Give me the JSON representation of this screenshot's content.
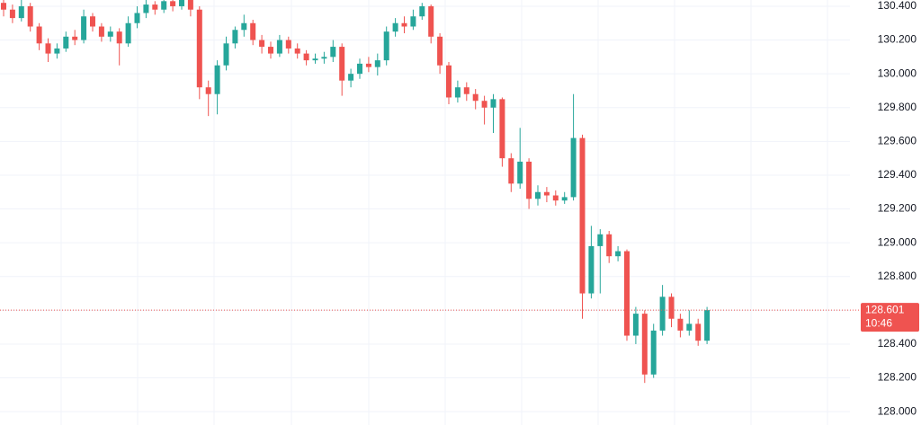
{
  "chart_data": {
    "type": "candlestick",
    "up_color": "#26a69a",
    "down_color": "#ef5350",
    "ylim": [
      127.921,
      130.437
    ],
    "yticks": [
      {
        "value": 128.0,
        "label": "128.000"
      },
      {
        "value": 128.2,
        "label": "128.200"
      },
      {
        "value": 128.4,
        "label": "128.400"
      },
      {
        "value": 128.6,
        "label": "128.600"
      },
      {
        "value": 128.8,
        "label": "128.800"
      },
      {
        "value": 129.0,
        "label": "129.000"
      },
      {
        "value": 129.2,
        "label": "129.200"
      },
      {
        "value": 129.4,
        "label": "129.400"
      },
      {
        "value": 129.6,
        "label": "129.600"
      },
      {
        "value": 129.8,
        "label": "129.800"
      },
      {
        "value": 130.0,
        "label": "130.000"
      },
      {
        "value": 130.2,
        "label": "130.200"
      },
      {
        "value": 130.4,
        "label": "130.400"
      }
    ],
    "grid": true,
    "current_price": {
      "value": 128.601,
      "label": "128.601"
    },
    "countdown": "10:46",
    "open": [
      130.42,
      130.38,
      130.33,
      130.4,
      130.28,
      130.18,
      130.12,
      130.15,
      130.22,
      130.2,
      130.34,
      130.28,
      130.22,
      130.25,
      130.18,
      130.3,
      130.36,
      130.41,
      130.38,
      130.43,
      130.4,
      130.44,
      130.38,
      129.92,
      129.88,
      130.05,
      130.18,
      130.26,
      130.3,
      130.2,
      130.16,
      130.12,
      130.2,
      130.15,
      130.12,
      130.08,
      130.09,
      130.1,
      130.16,
      129.96,
      130.0,
      130.06,
      130.04,
      130.08,
      130.25,
      130.3,
      130.28,
      130.34,
      130.4,
      130.22,
      130.05,
      129.86,
      129.92,
      129.88,
      129.84,
      129.8,
      129.85,
      129.5,
      129.35,
      129.48,
      129.26,
      129.3,
      129.28,
      129.25,
      129.27,
      129.62,
      128.7,
      128.98,
      129.05,
      128.92,
      128.95,
      128.45,
      128.58,
      128.22,
      128.48,
      128.68,
      128.55,
      128.48,
      128.52,
      128.42
    ],
    "high": [
      130.47,
      130.41,
      130.44,
      130.42,
      130.3,
      130.21,
      130.18,
      130.25,
      130.26,
      130.38,
      130.36,
      130.3,
      130.28,
      130.27,
      130.34,
      130.4,
      130.44,
      130.43,
      130.46,
      130.45,
      130.47,
      130.46,
      130.4,
      129.96,
      130.08,
      130.22,
      130.28,
      130.35,
      130.32,
      130.23,
      130.19,
      130.23,
      130.22,
      130.18,
      130.14,
      130.12,
      130.13,
      130.2,
      130.18,
      130.03,
      130.09,
      130.1,
      130.12,
      130.28,
      130.33,
      130.34,
      130.38,
      130.42,
      130.41,
      130.24,
      130.07,
      129.96,
      129.95,
      129.91,
      129.87,
      129.88,
      129.86,
      129.53,
      129.68,
      129.5,
      129.34,
      129.33,
      129.31,
      129.3,
      129.88,
      129.64,
      129.1,
      129.08,
      129.07,
      128.98,
      128.96,
      128.62,
      128.6,
      128.52,
      128.75,
      128.7,
      128.58,
      128.6,
      128.55,
      128.62
    ],
    "low": [
      130.34,
      130.3,
      130.31,
      130.25,
      130.14,
      130.07,
      130.09,
      130.13,
      130.17,
      130.18,
      130.25,
      130.19,
      130.19,
      130.05,
      130.16,
      130.27,
      130.33,
      130.35,
      130.36,
      130.37,
      130.38,
      130.34,
      129.85,
      129.75,
      129.76,
      130.02,
      130.15,
      130.22,
      130.17,
      130.12,
      130.09,
      130.1,
      130.12,
      130.09,
      130.05,
      130.06,
      130.06,
      130.07,
      129.87,
      129.92,
      129.97,
      130.01,
      129.99,
      130.05,
      130.22,
      130.24,
      130.26,
      130.32,
      130.18,
      130.0,
      129.82,
      129.83,
      129.84,
      129.79,
      129.7,
      129.65,
      129.45,
      129.3,
      129.32,
      129.2,
      129.22,
      129.24,
      129.22,
      129.23,
      129.25,
      128.55,
      128.67,
      128.7,
      128.88,
      128.89,
      128.42,
      128.4,
      128.17,
      128.2,
      128.45,
      128.5,
      128.44,
      128.45,
      128.39,
      128.4
    ],
    "close": [
      130.38,
      130.33,
      130.4,
      130.28,
      130.18,
      130.12,
      130.15,
      130.22,
      130.2,
      130.34,
      130.28,
      130.22,
      130.25,
      130.18,
      130.3,
      130.36,
      130.41,
      130.38,
      130.43,
      130.4,
      130.44,
      130.38,
      129.92,
      129.88,
      130.05,
      130.18,
      130.26,
      130.3,
      130.2,
      130.16,
      130.12,
      130.2,
      130.15,
      130.12,
      130.08,
      130.09,
      130.1,
      130.16,
      129.96,
      130.0,
      130.06,
      130.04,
      130.08,
      130.25,
      130.3,
      130.28,
      130.34,
      130.4,
      130.22,
      130.05,
      129.86,
      129.92,
      129.88,
      129.84,
      129.8,
      129.85,
      129.5,
      129.35,
      129.48,
      129.26,
      129.3,
      129.28,
      129.25,
      129.27,
      129.62,
      128.7,
      128.98,
      129.05,
      128.92,
      128.95,
      128.45,
      128.58,
      128.22,
      128.48,
      128.68,
      128.55,
      128.48,
      128.52,
      128.42,
      128.601
    ]
  }
}
